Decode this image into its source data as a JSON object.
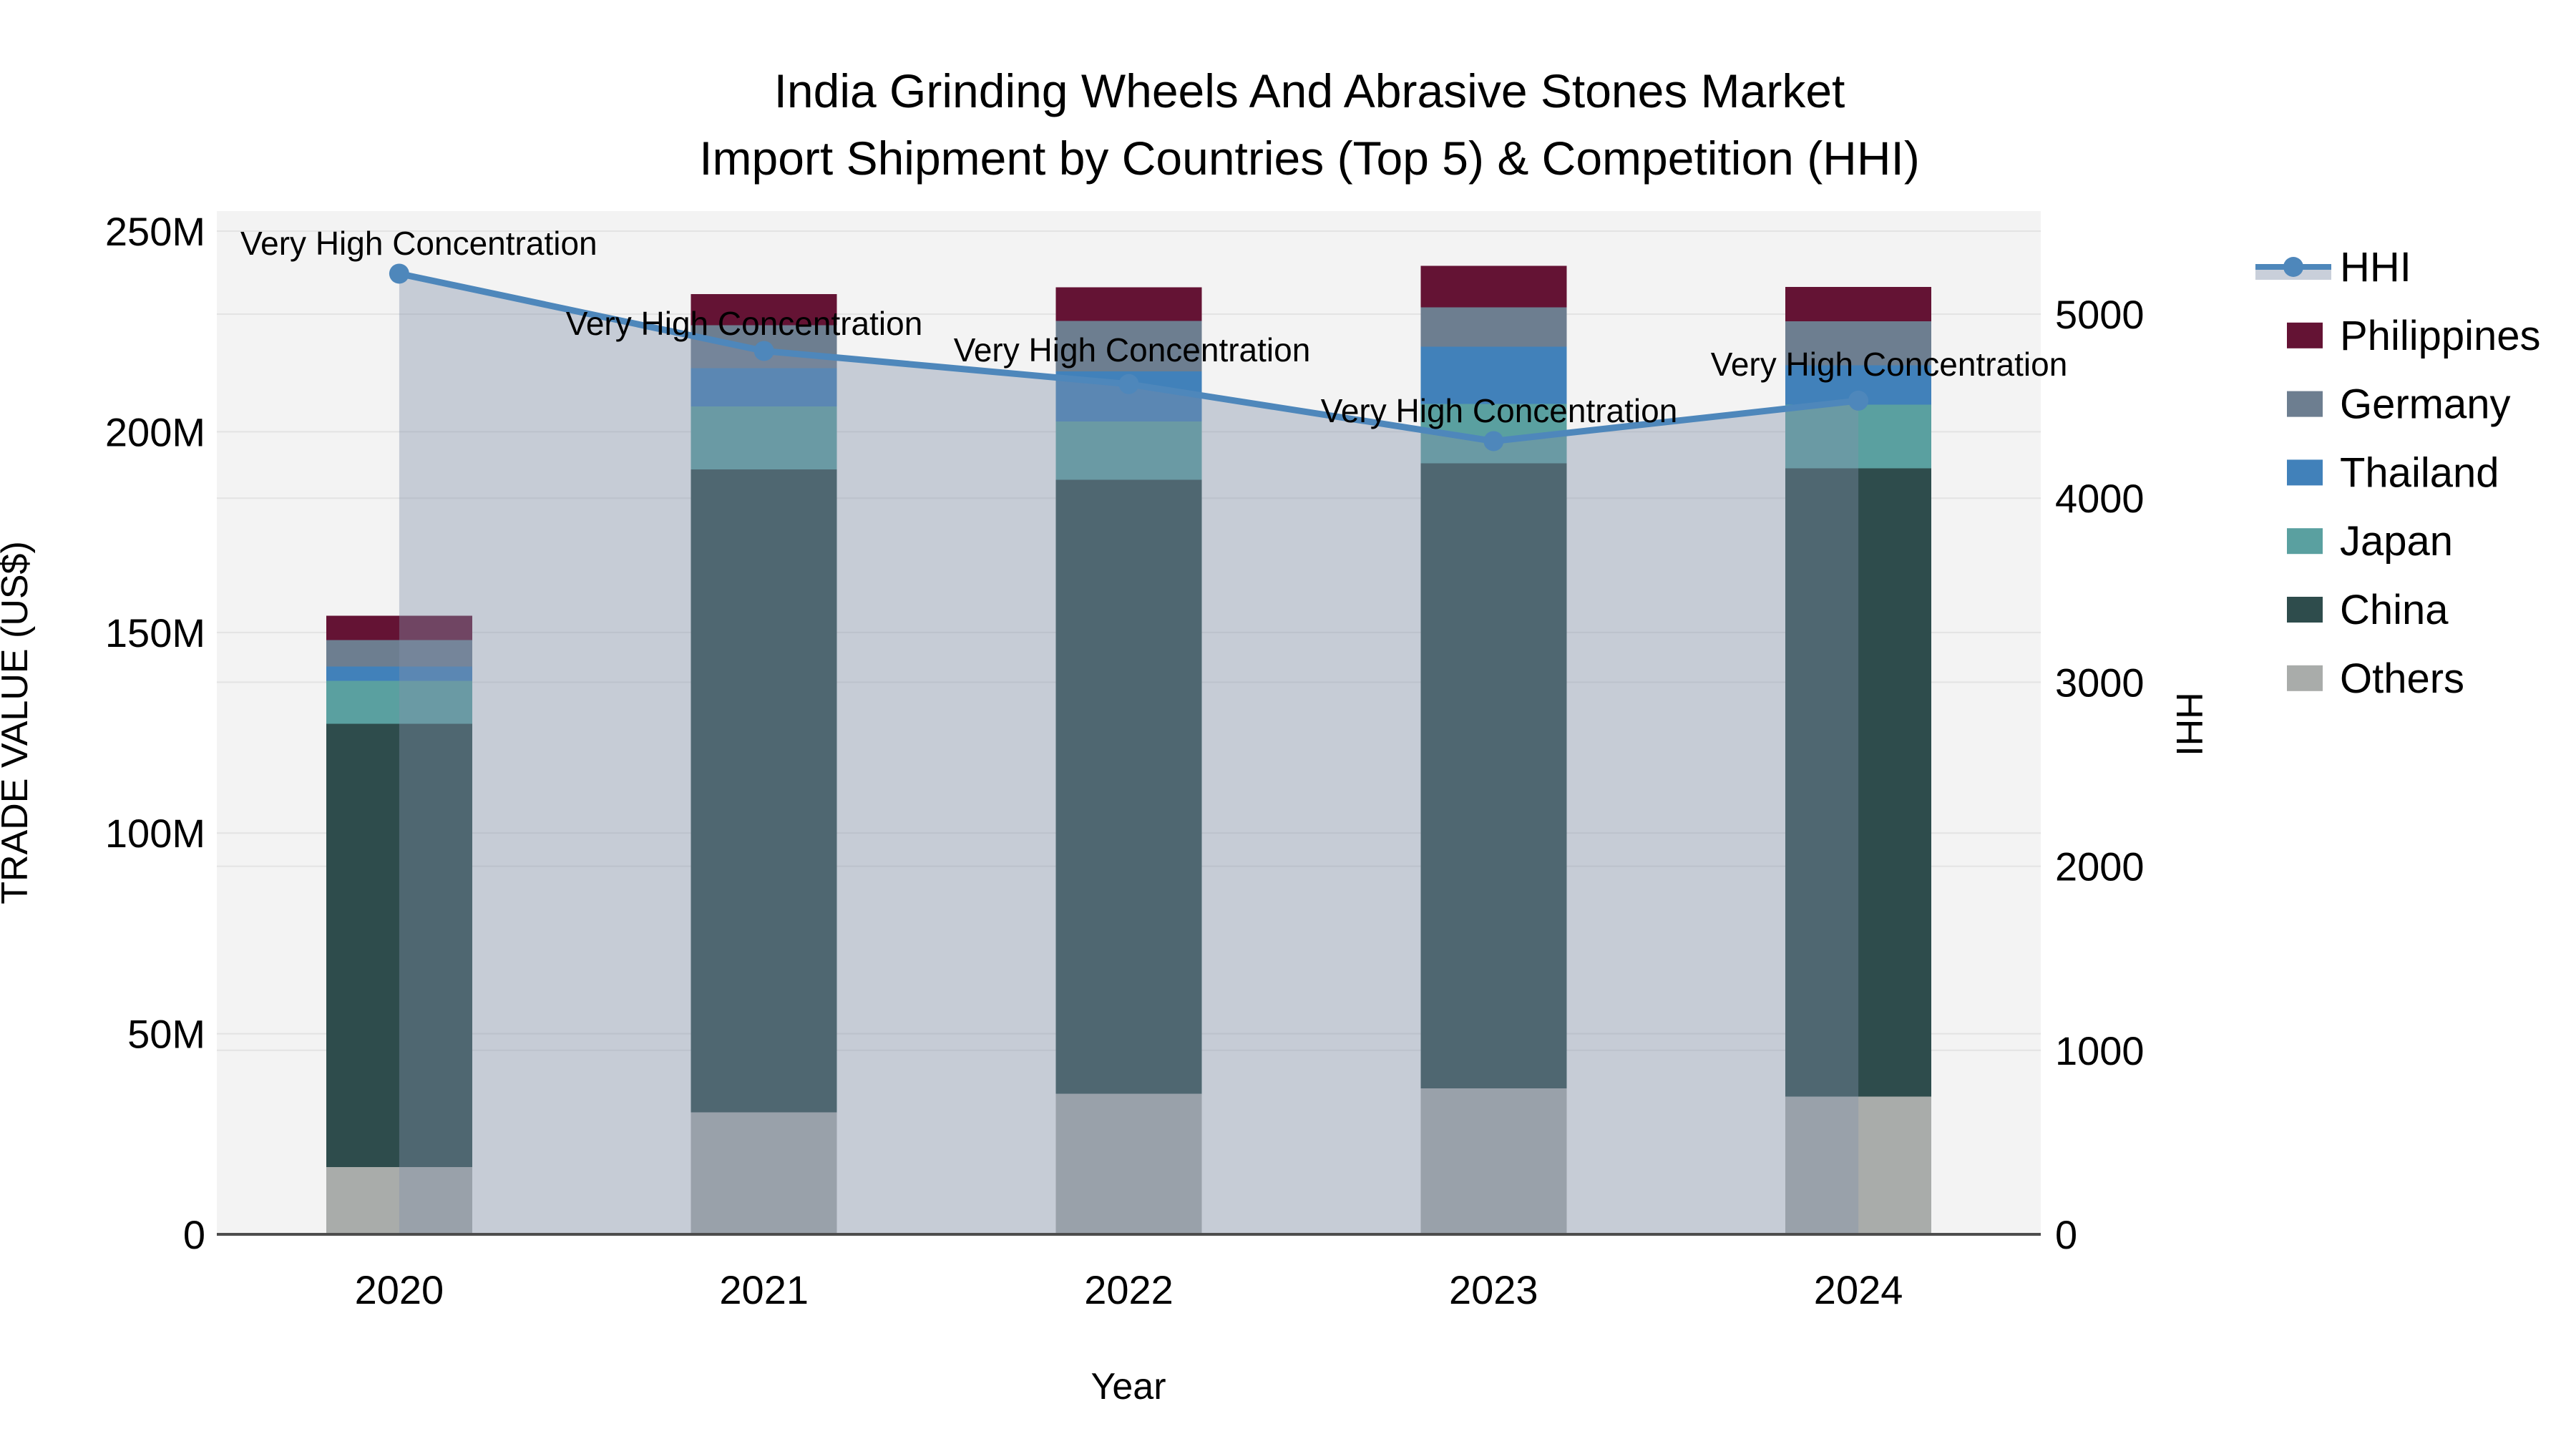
{
  "title": {
    "line1": "India Grinding Wheels And Abrasive Stones Market",
    "line2": "Import Shipment by Countries (Top 5) & Competition (HHI)"
  },
  "axes": {
    "left": {
      "label": "TRADE VALUE (US$)",
      "tick_labels": [
        "0",
        "50M",
        "100M",
        "150M",
        "200M",
        "250M"
      ],
      "tick_values": [
        0,
        50,
        100,
        150,
        200,
        250
      ],
      "lim": [
        0,
        255
      ]
    },
    "right": {
      "label": "HHI",
      "tick_labels": [
        "0",
        "1000",
        "2000",
        "3000",
        "4000",
        "5000"
      ],
      "tick_values": [
        0,
        1000,
        2000,
        3000,
        4000,
        5000
      ],
      "lim": [
        0,
        5560
      ]
    },
    "x": {
      "label": "Year",
      "categories": [
        "2020",
        "2021",
        "2022",
        "2023",
        "2024"
      ]
    }
  },
  "legend": {
    "items": [
      {
        "label": "HHI",
        "type": "line",
        "color": "#4e87bb"
      },
      {
        "label": "Philippines",
        "type": "swatch",
        "color": "#641334"
      },
      {
        "label": "Germany",
        "type": "swatch",
        "color": "#6d7e90"
      },
      {
        "label": "Thailand",
        "type": "swatch",
        "color": "#4181ba"
      },
      {
        "label": "Japan",
        "type": "swatch",
        "color": "#5aa0a0"
      },
      {
        "label": "China",
        "type": "swatch",
        "color": "#2e4c4c"
      },
      {
        "label": "Others",
        "type": "swatch",
        "color": "#a9acaa"
      }
    ]
  },
  "chart_data": {
    "type": "bar+line",
    "title": "India Grinding Wheels And Abrasive Stones Market Import Shipment by Countries (Top 5) & Competition (HHI)",
    "categories": [
      "2020",
      "2021",
      "2022",
      "2023",
      "2024"
    ],
    "stack_order": [
      "Others",
      "China",
      "Japan",
      "Thailand",
      "Germany",
      "Philippines"
    ],
    "series": [
      {
        "name": "Others",
        "color": "#a9acaa",
        "values": [
          16.8,
          30.4,
          35.0,
          36.4,
          34.3
        ]
      },
      {
        "name": "China",
        "color": "#2e4c4c",
        "values": [
          110.4,
          160.2,
          153.0,
          155.7,
          156.6
        ]
      },
      {
        "name": "Japan",
        "color": "#5aa0a0",
        "values": [
          10.7,
          15.7,
          14.6,
          14.8,
          15.9
        ]
      },
      {
        "name": "Thailand",
        "color": "#4181ba",
        "values": [
          3.6,
          9.6,
          12.5,
          14.3,
          9.8
        ]
      },
      {
        "name": "Germany",
        "color": "#6d7e90",
        "values": [
          6.6,
          10.7,
          12.5,
          9.8,
          10.9
        ]
      },
      {
        "name": "Philippines",
        "color": "#641334",
        "values": [
          6.1,
          7.7,
          8.4,
          10.4,
          8.6
        ]
      }
    ],
    "bar_totals": [
      154.2,
      234.3,
      236.0,
      241.4,
      236.1
    ],
    "line": {
      "name": "HHI",
      "color": "#4e87bb",
      "values": [
        5220,
        4800,
        4620,
        4310,
        4530
      ],
      "area_fill": "rgba(130,145,170,0.40)"
    },
    "units": "US$ millions",
    "xlabel": "Year",
    "ylabel": "TRADE VALUE (US$)",
    "y2label": "HHI",
    "ylim": [
      0,
      255
    ],
    "y2lim": [
      0,
      5560
    ],
    "grid": true,
    "legend_position": "right",
    "annotations": [
      {
        "text": "Very High Concentration",
        "year": "2020",
        "x": 336,
        "y": 356,
        "anchor": "start"
      },
      {
        "text": "Very High Concentration",
        "year": "2021",
        "x": 1040,
        "y": 468,
        "anchor": "middle"
      },
      {
        "text": "Very High Concentration",
        "year": "2022",
        "x": 1582,
        "y": 505,
        "anchor": "middle"
      },
      {
        "text": "Very High Concentration",
        "year": "2023",
        "x": 2095,
        "y": 590,
        "anchor": "middle"
      },
      {
        "text": "Very High Concentration",
        "year": "2024",
        "x": 2640,
        "y": 525,
        "anchor": "middle"
      }
    ],
    "colors": {
      "plot_bg": "#f3f3f3",
      "grid": "#e3e3e3",
      "axis_line": "#4d4d4d",
      "hhi_line": "#4e87bb",
      "area_fill": "rgba(130,145,170,0.40)"
    }
  }
}
